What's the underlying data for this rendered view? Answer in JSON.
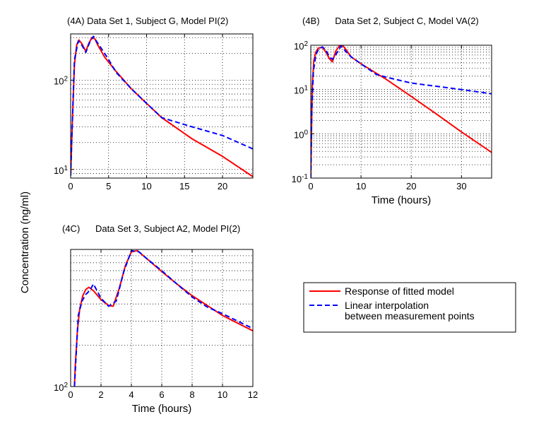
{
  "figure": {
    "ylabel": "Concentration (ng/ml)",
    "legend": {
      "placement": "right, beside panel 4C",
      "entries": [
        {
          "label_lines": [
            "Response of fitted model"
          ],
          "color": "#ff0000",
          "style": "solid"
        },
        {
          "label_lines": [
            "Linear interpolation",
            "between measurement points"
          ],
          "color": "#0000ff",
          "style": "dashed"
        }
      ]
    }
  },
  "chart_data": [
    {
      "panel": "4A",
      "type": "line",
      "title": "(4A) Data Set 1, Subject G, Model PI(2)",
      "xlabel": "",
      "ylabel": "",
      "xlim": [
        0,
        24
      ],
      "ylim": [
        8,
        330
      ],
      "yscale": "log",
      "grid": true,
      "xticks": [
        0,
        5,
        10,
        15,
        20
      ],
      "xtick_labels": [
        "0",
        "5",
        "10",
        "15",
        "20"
      ],
      "yticks": [
        10,
        100
      ],
      "ytick_labels": [
        "10^1",
        "10^2"
      ],
      "series": [
        {
          "name": "Response of fitted model",
          "color": "#ff0000",
          "style": "solid",
          "x": [
            0,
            0.2,
            0.5,
            0.8,
            1.1,
            1.5,
            2.0,
            2.4,
            2.8,
            3.2,
            3.6,
            4.5,
            6,
            8,
            10,
            12,
            16,
            20,
            24
          ],
          "y": [
            8.5,
            30,
            150,
            250,
            282,
            255,
            210,
            260,
            300,
            290,
            245,
            180,
            125,
            80,
            55,
            38,
            22,
            14,
            8.3
          ]
        },
        {
          "name": "Linear interpolation between measurement points",
          "color": "#0000ff",
          "style": "dashed",
          "x": [
            0,
            0.25,
            0.5,
            1.0,
            1.5,
            2.0,
            2.5,
            3.0,
            3.5,
            4,
            5,
            6,
            8,
            10,
            12,
            16,
            20,
            24
          ],
          "y": [
            8.5,
            40,
            170,
            275,
            245,
            205,
            265,
            310,
            265,
            230,
            170,
            122,
            80,
            55,
            38,
            30,
            24,
            17
          ]
        }
      ]
    },
    {
      "panel": "4B",
      "type": "line",
      "title": "(4B)      Data Set 2, Subject C, Model VA(2)",
      "xlabel": "Time (hours)",
      "ylabel": "",
      "xlim": [
        0,
        36
      ],
      "ylim": [
        0.1,
        100
      ],
      "yscale": "log",
      "grid": true,
      "xticks": [
        0,
        10,
        20,
        30
      ],
      "xtick_labels": [
        "0",
        "10",
        "20",
        "30"
      ],
      "yticks": [
        0.1,
        1,
        10,
        100
      ],
      "ytick_labels": [
        "10^-1",
        "10^0",
        "10^1",
        "10^2"
      ],
      "series": [
        {
          "name": "Response of fitted model",
          "color": "#ff0000",
          "style": "solid",
          "x": [
            0,
            0.15,
            0.3,
            0.6,
            1.0,
            1.5,
            2.3,
            3.0,
            3.7,
            4.3,
            5.0,
            5.5,
            6.0,
            7.0,
            8,
            10,
            15,
            20,
            25,
            30,
            36
          ],
          "y": [
            0.1,
            1.5,
            12,
            45,
            70,
            86,
            90,
            70,
            50,
            42,
            75,
            90,
            110,
            80,
            55,
            38,
            17,
            7,
            2.8,
            1.1,
            0.38
          ]
        },
        {
          "name": "Linear interpolation between measurement points",
          "color": "#0000ff",
          "style": "dashed",
          "x": [
            0,
            0.2,
            0.5,
            1.0,
            1.5,
            2.3,
            3.0,
            3.7,
            4.3,
            5.0,
            5.5,
            6.0,
            7.0,
            8,
            10,
            13,
            15,
            20,
            30,
            36
          ],
          "y": [
            0.1,
            3,
            25,
            60,
            80,
            92,
            78,
            55,
            48,
            62,
            75,
            96,
            72,
            55,
            38,
            22,
            19,
            14,
            10,
            8
          ]
        }
      ]
    },
    {
      "panel": "4C",
      "type": "line",
      "title": "(4C)      Data Set 3, Subject A2, Model PI(2)",
      "xlabel": "Time (hours)",
      "ylabel": "",
      "xlim": [
        0,
        12
      ],
      "ylim": [
        100,
        1000
      ],
      "yscale": "log",
      "grid": true,
      "xticks": [
        0,
        2,
        4,
        6,
        8,
        10,
        12
      ],
      "xtick_labels": [
        "0",
        "2",
        "4",
        "6",
        "8",
        "10",
        "12"
      ],
      "yticks": [
        100
      ],
      "ytick_labels": [
        "10^2"
      ],
      "series": [
        {
          "name": "Response of fitted model",
          "color": "#ff0000",
          "style": "solid",
          "x": [
            0.25,
            0.3,
            0.45,
            0.6,
            0.8,
            1.0,
            1.2,
            1.5,
            2.0,
            2.5,
            2.8,
            3.2,
            3.6,
            4.0,
            4.4,
            5.0,
            6.0,
            7.0,
            8.0,
            9.0,
            10.0,
            11.0,
            12.0
          ],
          "y": [
            100,
            140,
            260,
            370,
            460,
            510,
            530,
            500,
            430,
            390,
            385,
            520,
            760,
            960,
            980,
            860,
            690,
            560,
            460,
            390,
            330,
            290,
            255
          ]
        },
        {
          "name": "Linear interpolation between measurement points",
          "color": "#0000ff",
          "style": "dashed",
          "x": [
            0.25,
            0.35,
            0.5,
            0.75,
            1.0,
            1.25,
            1.5,
            2.0,
            2.5,
            3.0,
            3.5,
            4.0,
            4.5,
            5.0,
            6.0,
            7.0,
            8.0,
            9.0,
            10.0,
            11.0,
            12.0
          ],
          "y": [
            100,
            160,
            330,
            420,
            470,
            500,
            560,
            440,
            385,
            420,
            690,
            980,
            960,
            860,
            700,
            560,
            450,
            380,
            340,
            300,
            265
          ]
        }
      ]
    }
  ]
}
